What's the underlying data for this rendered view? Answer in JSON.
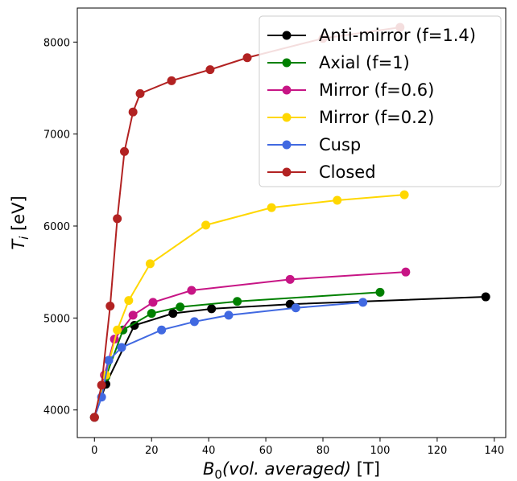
{
  "chart_data": {
    "type": "line",
    "xlabel": "B_0(vol. averaged) [T]",
    "xlabel_parts": {
      "var": "B",
      "sub": "0",
      "rest": "(vol. averaged)",
      "unit": " [T]"
    },
    "ylabel": "T_i [eV]",
    "ylabel_parts": {
      "var": "T",
      "sub": "i",
      "unit": " [eV]"
    },
    "xlim": [
      -6,
      144
    ],
    "ylim": [
      3700,
      8370
    ],
    "xticks": [
      0,
      20,
      40,
      60,
      80,
      100,
      120,
      140
    ],
    "yticks": [
      4000,
      5000,
      6000,
      7000,
      8000
    ],
    "grid": false,
    "legend_position": "top-right",
    "series": [
      {
        "name": "Anti-mirror (f=1.4)",
        "color": "#000000",
        "x": [
          0,
          4,
          14,
          27.5,
          41,
          68.5,
          137
        ],
        "y": [
          3920,
          4280,
          4920,
          5050,
          5100,
          5150,
          5230
        ]
      },
      {
        "name": "Axial (f=1)",
        "color": "#008000",
        "x": [
          0,
          4,
          10,
          20,
          30,
          50,
          100
        ],
        "y": [
          3920,
          4360,
          4870,
          5050,
          5120,
          5180,
          5280
        ]
      },
      {
        "name": "Mirror (f=0.6)",
        "color": "#c71585",
        "x": [
          0,
          3.5,
          7,
          13.5,
          20.5,
          34,
          68.5,
          109
        ],
        "y": [
          3920,
          4380,
          4770,
          5030,
          5170,
          5300,
          5420,
          5500
        ]
      },
      {
        "name": "Mirror (f=0.2)",
        "color": "#ffd700",
        "x": [
          0,
          4,
          8,
          12,
          19.5,
          39,
          62,
          85,
          108.5
        ],
        "y": [
          3920,
          4380,
          4870,
          5190,
          5590,
          6010,
          6200,
          6280,
          6340
        ]
      },
      {
        "name": "Cusp",
        "color": "#4169e1",
        "x": [
          0,
          2.5,
          5,
          9.5,
          23.5,
          35,
          47,
          70.5,
          94
        ],
        "y": [
          3920,
          4140,
          4540,
          4680,
          4870,
          4960,
          5030,
          5110,
          5170
        ]
      },
      {
        "name": "Closed",
        "color": "#b22222",
        "x": [
          0,
          2.5,
          5.5,
          8,
          10.5,
          13.5,
          16,
          27,
          40.5,
          53.5,
          80,
          107
        ],
        "y": [
          3920,
          4270,
          5130,
          6080,
          6810,
          7240,
          7440,
          7580,
          7700,
          7830,
          8040,
          8160
        ]
      }
    ]
  }
}
